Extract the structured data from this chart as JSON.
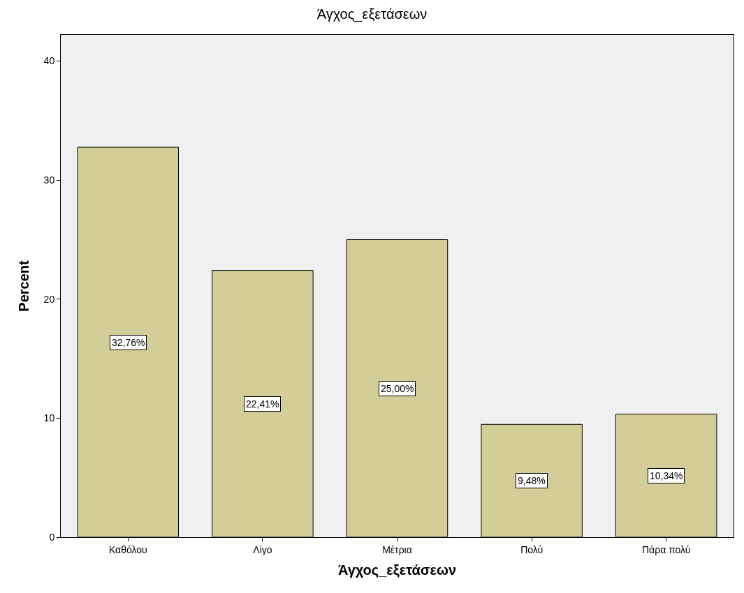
{
  "chart_data": {
    "type": "bar",
    "title": "Άγχος_εξετάσεων",
    "xlabel": "Άγχος_εξετάσεων",
    "ylabel": "Percent",
    "categories": [
      "Καθόλου",
      "Λίγο",
      "Μέτρια",
      "Πολύ",
      "Πάρα πολύ"
    ],
    "values": [
      32.76,
      22.41,
      25.0,
      9.48,
      10.34
    ],
    "value_labels": [
      "32,76%",
      "22,41%",
      "25,00%",
      "9,48%",
      "10,34%"
    ],
    "color": "#d3ce97",
    "ylim": [
      0,
      42.2
    ],
    "yticks": [
      0,
      10,
      20,
      30,
      40
    ],
    "grid": false,
    "legend": false
  }
}
